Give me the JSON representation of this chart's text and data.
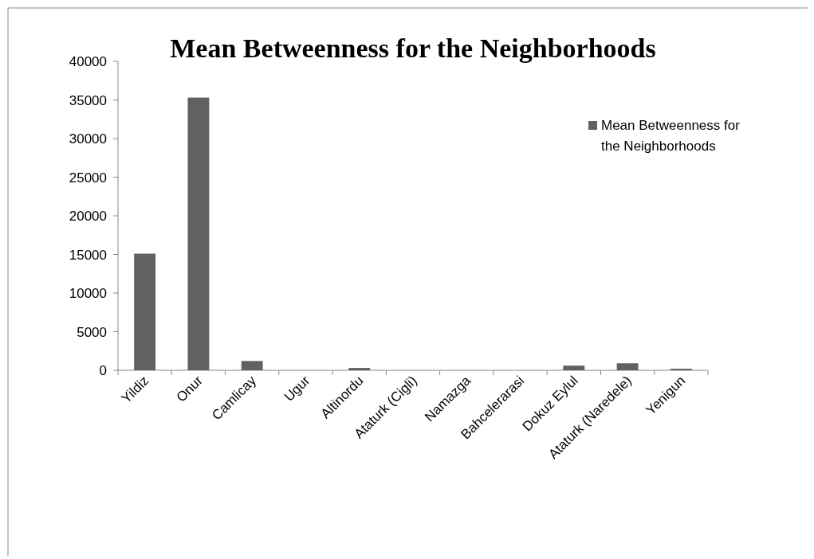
{
  "chart_data": {
    "type": "bar",
    "title": "Mean Betweenness for the Neighborhoods",
    "categories": [
      "Yildiz",
      "Onur",
      "Camlicay",
      "Ugur",
      "Altinordu",
      "Ataturk (Cigli)",
      "Namazga",
      "Bahcelerarasi",
      "Dokuz Eylul",
      "Ataturk (Naredele)",
      "Yenigun"
    ],
    "series": [
      {
        "name": "Mean Betweenness for the Neighborhoods",
        "color": "#616161",
        "values": [
          15100,
          35300,
          1200,
          0,
          300,
          0,
          0,
          0,
          600,
          900,
          200
        ]
      }
    ],
    "ylim": [
      0,
      40000
    ],
    "yticks": [
      0,
      5000,
      10000,
      15000,
      20000,
      25000,
      30000,
      35000,
      40000
    ],
    "legend": "right"
  }
}
